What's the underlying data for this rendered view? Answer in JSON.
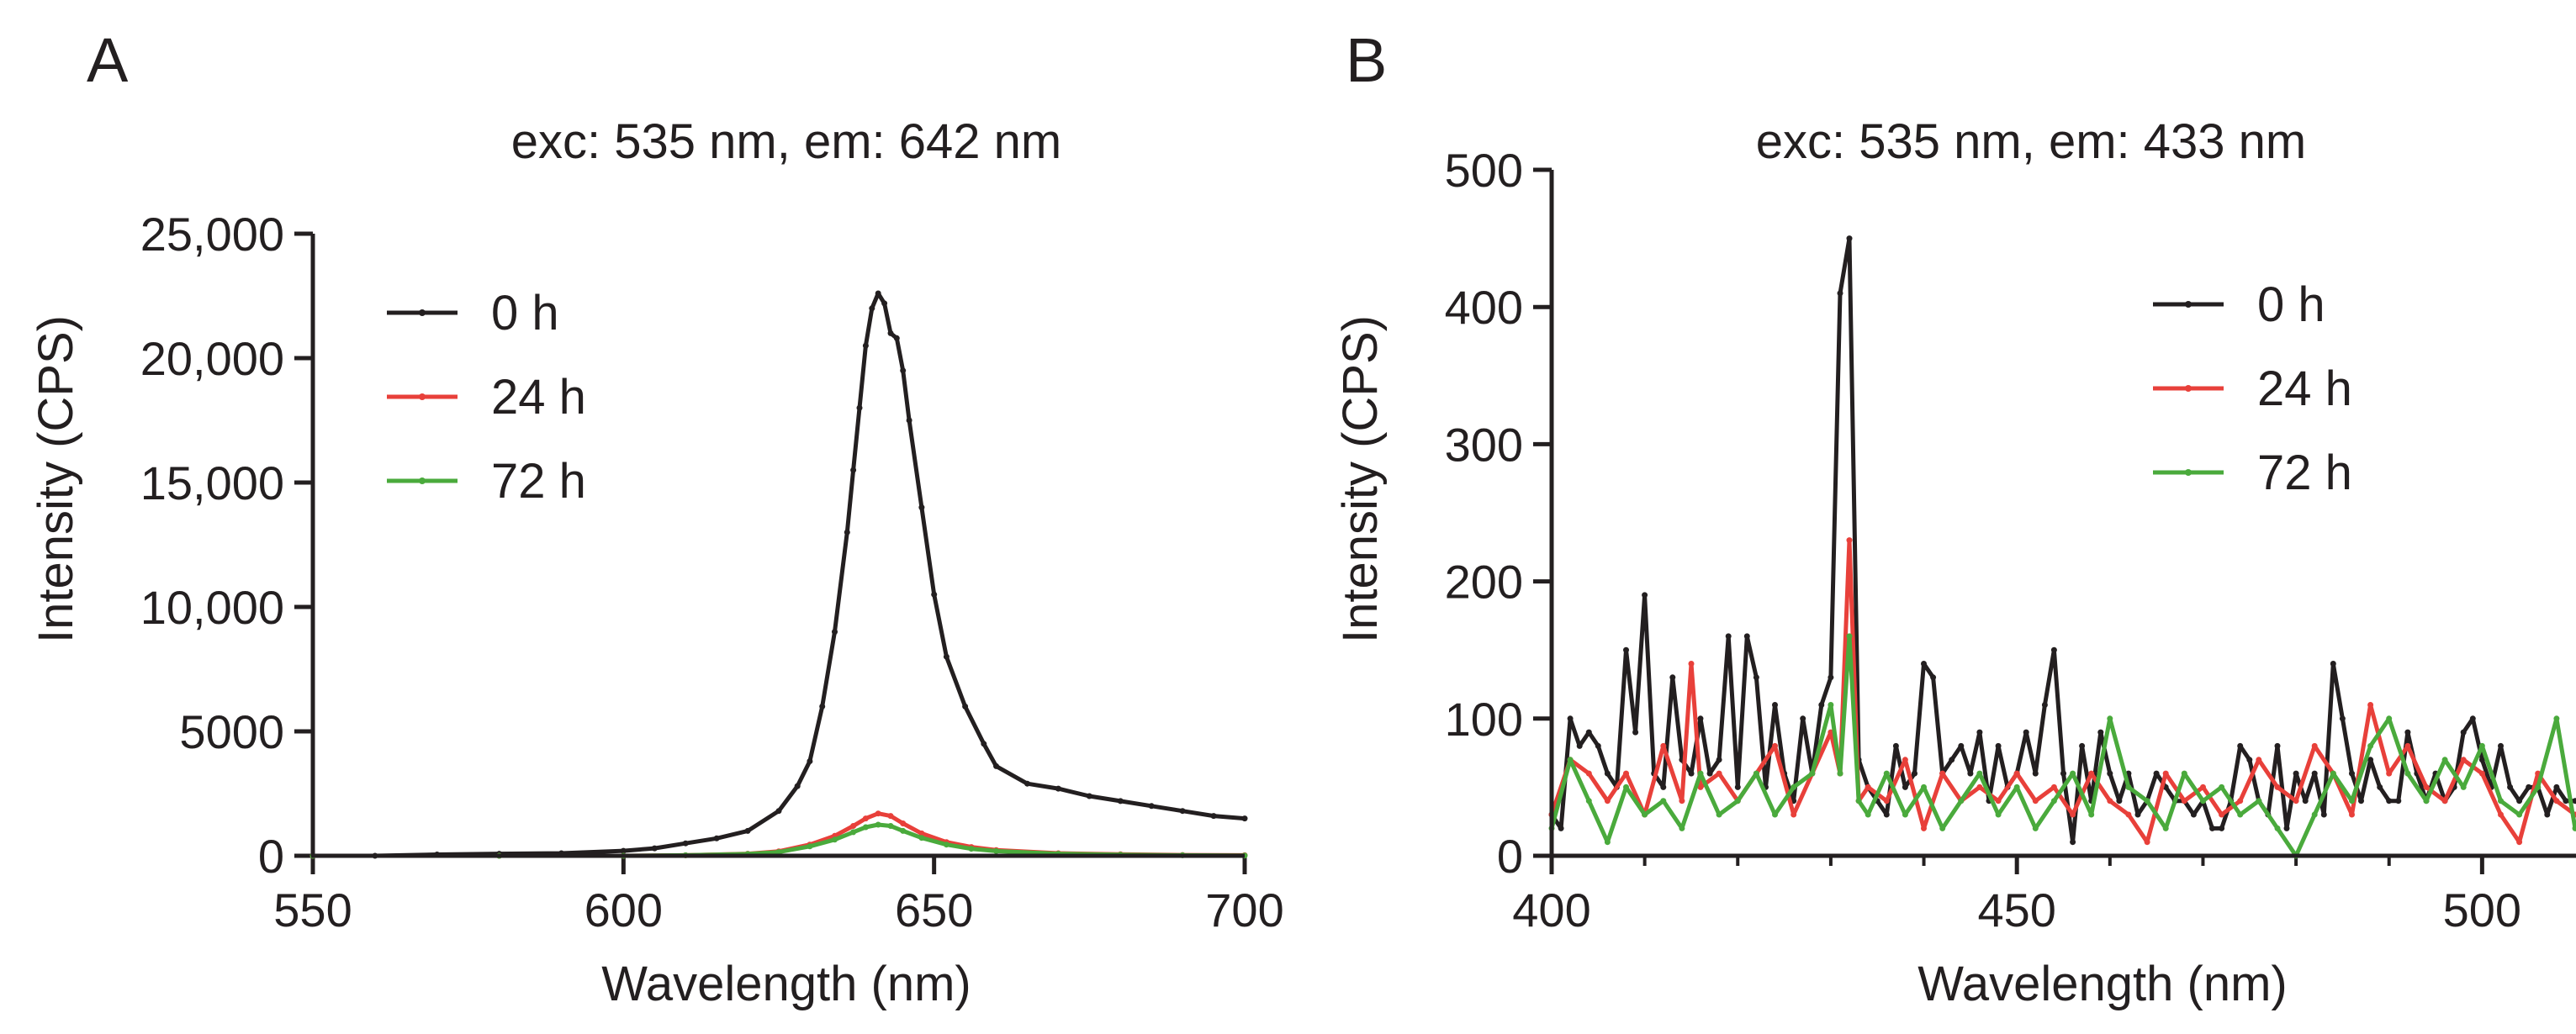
{
  "chart_data": [
    {
      "panel_label": "A",
      "type": "line",
      "title": "exc: 535 nm, em: 642 nm",
      "xlabel": "Wavelength (nm)",
      "ylabel": "Intensity (CPS)",
      "xlim": [
        550,
        700
      ],
      "ylim": [
        0,
        25000
      ],
      "xticks": [
        550,
        600,
        650,
        700
      ],
      "xtick_labels": [
        "550",
        "600",
        "650",
        "700"
      ],
      "yticks": [
        0,
        5000,
        10000,
        15000,
        20000,
        25000
      ],
      "ytick_labels": [
        "0",
        "5000",
        "10,000",
        "15,000",
        "20,000",
        "25,000"
      ],
      "legend_position": "top-left",
      "series": [
        {
          "name": "0 h",
          "color": "#231f20",
          "x": [
            550,
            560,
            570,
            580,
            590,
            600,
            605,
            610,
            615,
            620,
            625,
            628,
            630,
            632,
            634,
            636,
            637,
            638,
            639,
            640,
            641,
            642,
            643,
            644,
            645,
            646,
            648,
            650,
            652,
            655,
            658,
            660,
            665,
            670,
            675,
            680,
            685,
            690,
            695,
            700
          ],
          "y": [
            0,
            0,
            50,
            80,
            100,
            200,
            300,
            500,
            700,
            1000,
            1800,
            2800,
            3800,
            6000,
            9000,
            13000,
            15500,
            18000,
            20500,
            22000,
            22600,
            22200,
            21000,
            20800,
            19500,
            17500,
            14000,
            10500,
            8000,
            6000,
            4500,
            3600,
            2900,
            2700,
            2400,
            2200,
            2000,
            1800,
            1600,
            1500
          ]
        },
        {
          "name": "24 h",
          "color": "#e8403a",
          "x": [
            550,
            580,
            600,
            610,
            620,
            625,
            630,
            634,
            637,
            639,
            641,
            643,
            645,
            648,
            652,
            656,
            660,
            670,
            680,
            690,
            700
          ],
          "y": [
            0,
            0,
            0,
            20,
            80,
            180,
            450,
            800,
            1200,
            1500,
            1700,
            1600,
            1300,
            900,
            550,
            350,
            230,
            100,
            60,
            30,
            20
          ]
        },
        {
          "name": "72 h",
          "color": "#4aaa3c",
          "x": [
            550,
            580,
            600,
            610,
            620,
            625,
            630,
            634,
            637,
            639,
            641,
            643,
            645,
            648,
            652,
            656,
            660,
            670,
            680,
            690,
            700
          ],
          "y": [
            0,
            0,
            0,
            20,
            70,
            150,
            380,
            650,
            950,
            1150,
            1250,
            1200,
            1000,
            720,
            450,
            280,
            190,
            80,
            40,
            20,
            10
          ]
        }
      ]
    },
    {
      "panel_label": "B",
      "type": "line",
      "title": "exc: 535 nm, em: 433 nm",
      "xlabel": "Wavelength (nm)",
      "ylabel": "Intensity (CPS)",
      "xlim": [
        400,
        510
      ],
      "ylim": [
        0,
        500
      ],
      "xticks": [
        400,
        450,
        500
      ],
      "xtick_labels": [
        "400",
        "450",
        "500"
      ],
      "yticks": [
        0,
        100,
        200,
        300,
        400,
        500
      ],
      "ytick_labels": [
        "0",
        "100",
        "200",
        "300",
        "400",
        "500"
      ],
      "legend_position": "top-right",
      "series": [
        {
          "name": "0 h",
          "color": "#231f20",
          "x": [
            400,
            401,
            402,
            403,
            404,
            405,
            406,
            407,
            408,
            409,
            410,
            411,
            412,
            413,
            414,
            415,
            416,
            417,
            418,
            419,
            420,
            421,
            422,
            423,
            424,
            425,
            426,
            427,
            428,
            429,
            430,
            431,
            432,
            433,
            434,
            435,
            436,
            437,
            438,
            439,
            440,
            441,
            442,
            443,
            444,
            445,
            446,
            447,
            448,
            449,
            450,
            451,
            452,
            453,
            454,
            455,
            456,
            457,
            458,
            459,
            460,
            461,
            462,
            463,
            464,
            465,
            466,
            467,
            468,
            469,
            470,
            471,
            472,
            473,
            474,
            475,
            476,
            477,
            478,
            479,
            480,
            481,
            482,
            483,
            484,
            485,
            486,
            487,
            488,
            489,
            490,
            491,
            492,
            493,
            494,
            495,
            496,
            497,
            498,
            499,
            500,
            501,
            502,
            503,
            504,
            505,
            506,
            507,
            508,
            509,
            510
          ],
          "y": [
            30,
            20,
            100,
            80,
            90,
            80,
            60,
            50,
            150,
            90,
            190,
            60,
            50,
            130,
            70,
            60,
            100,
            60,
            70,
            160,
            50,
            160,
            130,
            50,
            110,
            60,
            40,
            100,
            60,
            110,
            130,
            410,
            450,
            70,
            50,
            40,
            30,
            80,
            50,
            60,
            140,
            130,
            60,
            70,
            80,
            60,
            90,
            40,
            80,
            50,
            60,
            90,
            60,
            110,
            150,
            60,
            10,
            80,
            40,
            90,
            60,
            40,
            60,
            30,
            40,
            60,
            50,
            40,
            40,
            30,
            40,
            20,
            20,
            40,
            80,
            70,
            40,
            30,
            80,
            20,
            60,
            40,
            60,
            30,
            140,
            100,
            60,
            40,
            70,
            50,
            40,
            40,
            90,
            60,
            40,
            60,
            40,
            50,
            90,
            100,
            70,
            50,
            80,
            50,
            40,
            50,
            50,
            30,
            50,
            40,
            40
          ]
        },
        {
          "name": "24 h",
          "color": "#e8403a",
          "x": [
            400,
            402,
            404,
            406,
            408,
            410,
            412,
            414,
            415,
            416,
            418,
            420,
            422,
            424,
            426,
            428,
            430,
            431,
            432,
            433,
            434,
            436,
            438,
            440,
            442,
            444,
            446,
            448,
            450,
            452,
            454,
            456,
            458,
            460,
            462,
            464,
            466,
            468,
            470,
            472,
            474,
            476,
            478,
            480,
            482,
            484,
            486,
            488,
            490,
            492,
            494,
            496,
            498,
            500,
            502,
            504,
            506,
            508,
            510
          ],
          "y": [
            30,
            70,
            60,
            40,
            60,
            30,
            80,
            40,
            140,
            50,
            60,
            40,
            60,
            80,
            30,
            60,
            90,
            60,
            230,
            40,
            50,
            40,
            70,
            20,
            60,
            40,
            50,
            40,
            60,
            40,
            50,
            30,
            60,
            40,
            30,
            10,
            60,
            40,
            50,
            30,
            40,
            70,
            50,
            40,
            80,
            60,
            30,
            110,
            60,
            80,
            50,
            40,
            70,
            60,
            30,
            10,
            60,
            40,
            30
          ]
        },
        {
          "name": "72 h",
          "color": "#4aaa3c",
          "x": [
            400,
            402,
            404,
            406,
            408,
            410,
            412,
            414,
            416,
            418,
            420,
            422,
            424,
            426,
            428,
            430,
            431,
            432,
            433,
            434,
            436,
            438,
            440,
            442,
            444,
            446,
            448,
            450,
            452,
            454,
            456,
            458,
            460,
            462,
            464,
            466,
            468,
            470,
            472,
            474,
            476,
            478,
            480,
            482,
            484,
            486,
            488,
            490,
            492,
            494,
            496,
            498,
            500,
            502,
            504,
            506,
            508,
            510
          ],
          "y": [
            20,
            70,
            40,
            10,
            50,
            30,
            40,
            20,
            60,
            30,
            40,
            60,
            30,
            50,
            60,
            110,
            60,
            160,
            40,
            30,
            60,
            30,
            50,
            20,
            40,
            60,
            30,
            50,
            20,
            40,
            60,
            30,
            100,
            50,
            40,
            20,
            60,
            40,
            50,
            30,
            40,
            20,
            0,
            30,
            60,
            40,
            80,
            100,
            60,
            40,
            70,
            50,
            80,
            40,
            30,
            50,
            100,
            20
          ]
        }
      ]
    }
  ]
}
